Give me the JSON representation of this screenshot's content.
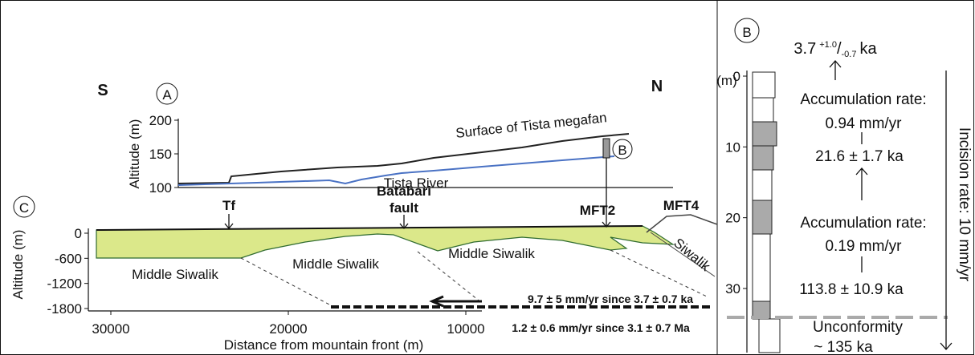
{
  "panel_a": {
    "label": "A",
    "south": "S",
    "north": "N",
    "y_axis_label": "Altitude (m)",
    "yticks": [
      200,
      150,
      100
    ],
    "surface_label": "Surface of Tista megafan",
    "river_label": "Tista River",
    "site_label": "B"
  },
  "panel_c": {
    "label": "C",
    "y_axis_label": "Altitude (m)",
    "yticks": [
      0,
      -600,
      -1200,
      -1800
    ],
    "xticks": [
      30000,
      20000,
      10000
    ],
    "x_axis_label": "Distance from mountain front (m)",
    "faults": {
      "tf": "Tf",
      "batabari_1": "Batabari",
      "batabari_2": "fault",
      "mft2": "MFT2",
      "mft4": "MFT4"
    },
    "units": [
      "Middle Siwalik",
      "Middle Siwalik",
      "Middle Siwalik",
      "Siwalik"
    ],
    "rates": [
      "9.7 ± 5 mm/yr since 3.7 ± 0.7 ka",
      "1.2 ± 0.6 mm/yr since 3.1 ± 0.7 Ma"
    ]
  },
  "panel_b": {
    "label": "B",
    "yticks": [
      0,
      10,
      20,
      30
    ],
    "unit": "(m)",
    "top_age": {
      "value": "3.7",
      "plus": "+1.0",
      "sep": "/",
      "minus": "-0.7",
      "unit": "ka"
    },
    "rate_1": [
      "Accumulation rate:",
      "0.94 mm/yr"
    ],
    "age_2": "21.6 ± 1.7 ka",
    "rate_2": [
      "Accumulation rate:",
      "0.19 mm/yr"
    ],
    "age_3": "113.8 ± 10.9 ka",
    "unconformity": [
      "Unconformity",
      "~ 135 ka"
    ],
    "incision": "Incision rate: 10 mm/yr"
  }
}
